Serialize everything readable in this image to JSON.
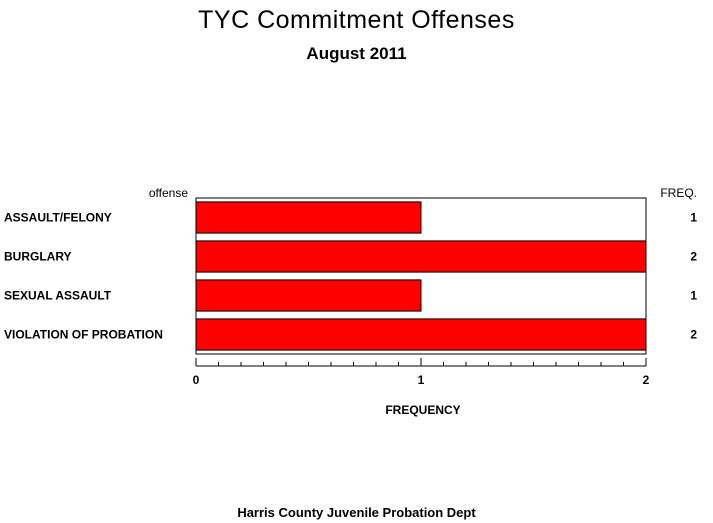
{
  "title": "TYC Commitment Offenses",
  "subtitle": "August 2011",
  "footer": "Harris County Juvenile Probation Dept",
  "colors": {
    "bar_fill": "#ff0000",
    "bar_stroke": "#000000"
  },
  "chart_data": {
    "type": "bar",
    "orientation": "horizontal",
    "title": "TYC Commitment Offenses",
    "subtitle": "August 2011",
    "category_label": "offense",
    "xlabel": "FREQUENCY",
    "freq_column_label": "FREQ.",
    "categories": [
      "ASSAULT/FELONY",
      "BURGLARY",
      "SEXUAL ASSAULT",
      "VIOLATION OF PROBATION"
    ],
    "values": [
      1,
      2,
      1,
      2
    ],
    "xlim": [
      0,
      2
    ],
    "x_ticks": [
      0,
      1,
      2
    ],
    "grid": false
  }
}
